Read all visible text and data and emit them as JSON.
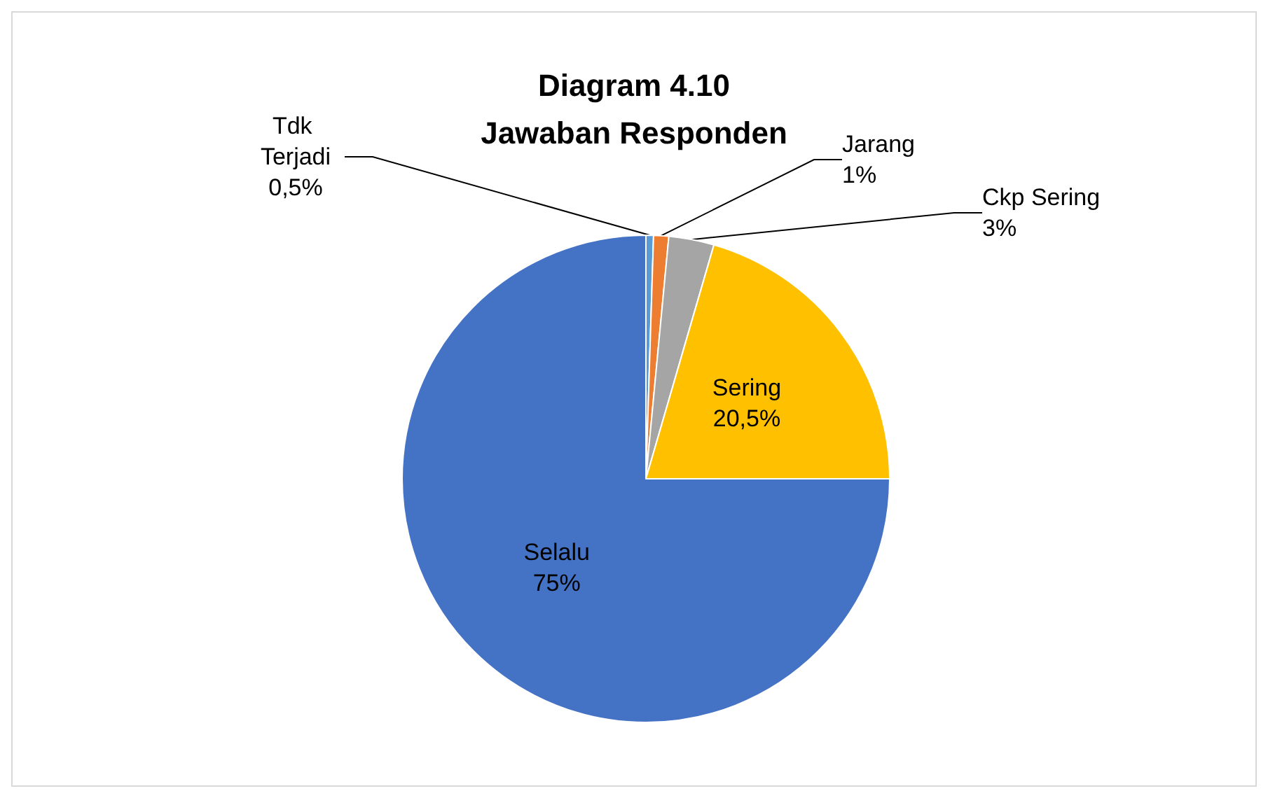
{
  "chart_data": {
    "type": "pie",
    "title": "Diagram 4.10\nJawaban Responden",
    "categories": [
      "Tdk Terjadi",
      "Jarang",
      "Ckp Sering",
      "Sering",
      "Selalu"
    ],
    "values": [
      0.5,
      1,
      3,
      20.5,
      75
    ],
    "value_labels": [
      "0,5%",
      "1%",
      "3%",
      "20,5%",
      "75%"
    ],
    "colors": [
      "#5b9bd5",
      "#ed7d31",
      "#a5a5a5",
      "#ffc000",
      "#4472c4"
    ],
    "legend": false
  }
}
